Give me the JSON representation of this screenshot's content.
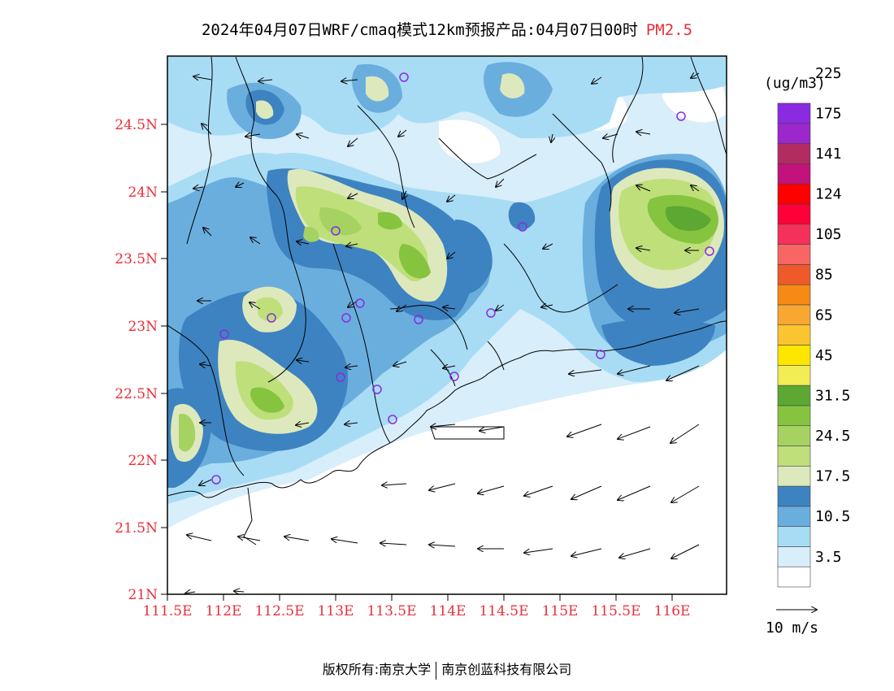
{
  "title": {
    "main": "2024年04月07日WRF/cmaq模式12km预报产品:04月07日00时",
    "variable": "PM2.5"
  },
  "legend": {
    "unit": "(ug/m3)",
    "colors": [
      "#ffffff",
      "#d8eefa",
      "#a8dcf5",
      "#6aaede",
      "#3e83c1",
      "#dde9bc",
      "#bedf7a",
      "#a6d262",
      "#86c440",
      "#5ca833",
      "#f2ed54",
      "#ffe600",
      "#fbc530",
      "#f8a730",
      "#f68a14",
      "#ee5a2a",
      "#f76565",
      "#f4315a",
      "#ff0039",
      "#fe0000",
      "#c3127c",
      "#b22c62",
      "#9b27cd",
      "#8a2be2"
    ],
    "labels": [
      "3.5",
      "10.5",
      "17.5",
      "24.5",
      "31.5",
      "45",
      "65",
      "85",
      "105",
      "124",
      "141",
      "175",
      "225"
    ]
  },
  "wind_scale": {
    "label": "10 m/s"
  },
  "axes": {
    "lat_labels": [
      "21N",
      "21.5N",
      "22N",
      "22.5N",
      "23N",
      "23.5N",
      "24N",
      "24.5N"
    ],
    "lon_labels": [
      "111.5E",
      "112E",
      "112.5E",
      "113E",
      "113.5E",
      "114E",
      "114.5E",
      "115E",
      "115.5E",
      "116E"
    ]
  },
  "footer": {
    "left": "版权所有:南京大学",
    "right": "南京创蓝科技有限公司"
  }
}
